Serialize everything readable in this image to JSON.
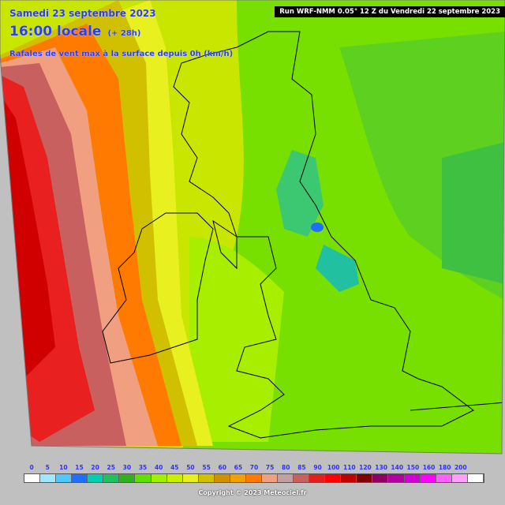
{
  "header": {
    "date": "Samedi 23 septembre 2023",
    "time": "16:00 locale",
    "offset": "(+ 28h)",
    "subtitle": "Rafales de vent max à la surface depuis 0h (km/h)",
    "run": "Run WRF-NMM 0.05° 12 Z du Vendredi 22 septembre 2023"
  },
  "legend": {
    "ticks": [
      "0",
      "5",
      "10",
      "15",
      "20",
      "25",
      "30",
      "35",
      "40",
      "45",
      "50",
      "55",
      "60",
      "65",
      "70",
      "75",
      "80",
      "85",
      "90",
      "100",
      "110",
      "120",
      "130",
      "140",
      "150",
      "160",
      "180",
      "200"
    ],
    "colors": [
      "#ffffff",
      "#a0e8ff",
      "#50c8ff",
      "#1e6eff",
      "#00d0b0",
      "#20c060",
      "#30b020",
      "#60e000",
      "#a0f000",
      "#c8f000",
      "#e8f020",
      "#d0c000",
      "#d09000",
      "#f0a000",
      "#ff7a00",
      "#f0a080",
      "#c0a0a0",
      "#c86060",
      "#e02020",
      "#ff0000",
      "#c00000",
      "#800000",
      "#900060",
      "#b000a0",
      "#d000d0",
      "#ff00ff",
      "#ff60ff",
      "#ffa0ff",
      "#ffffff"
    ]
  },
  "copyright": "Copyright © 2023 Meteociel.fr"
}
